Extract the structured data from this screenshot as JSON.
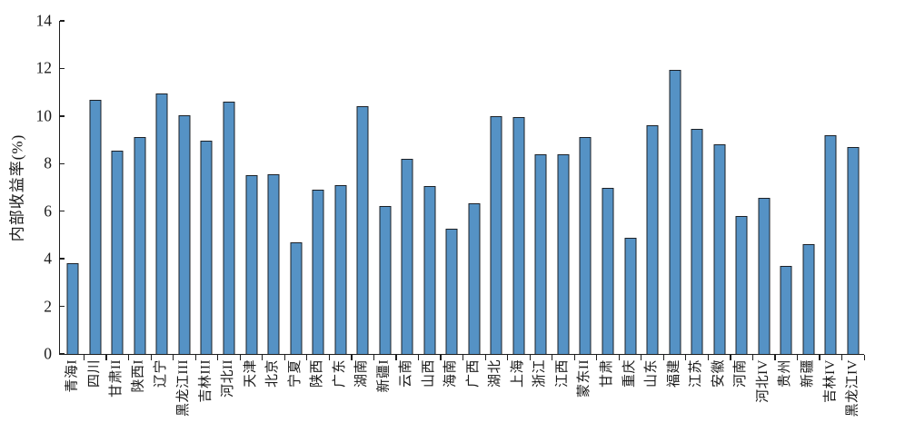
{
  "chart_data": {
    "type": "bar",
    "title": "",
    "xlabel": "",
    "ylabel": "内部收益率(%)",
    "ylim": [
      0,
      14
    ],
    "yticks": [
      0,
      2,
      4,
      6,
      8,
      10,
      12,
      14
    ],
    "grid": false,
    "legend_position": "none",
    "categories": [
      "青海I",
      "四川",
      "甘肃II",
      "陕西I",
      "辽宁",
      "黑龙江III",
      "吉林III",
      "河北II",
      "天津",
      "北京",
      "宁夏",
      "陕西",
      "广东",
      "湖南",
      "新疆I",
      "云南",
      "山西",
      "海南",
      "广西",
      "湖北",
      "上海",
      "浙江",
      "江西",
      "蒙东II",
      "甘肃",
      "重庆",
      "山东",
      "福建",
      "江苏",
      "安徽",
      "河南",
      "河北IV",
      "贵州",
      "新疆",
      "吉林IV",
      "黑龙江IV"
    ],
    "values": [
      3.8,
      10.7,
      8.55,
      9.1,
      10.95,
      10.05,
      8.95,
      10.6,
      7.5,
      7.55,
      4.7,
      6.9,
      7.1,
      10.4,
      6.2,
      8.2,
      7.05,
      5.25,
      6.35,
      10.0,
      9.95,
      8.4,
      8.4,
      9.1,
      7.0,
      4.9,
      9.6,
      11.95,
      9.45,
      8.8,
      5.8,
      6.55,
      3.7,
      4.6,
      9.2,
      8.7
    ],
    "colors": {
      "bar_fill": "#5592c5",
      "bar_edge": "#1c2026",
      "axis": "#1f1f1f",
      "text": "#1a1a1a"
    }
  }
}
